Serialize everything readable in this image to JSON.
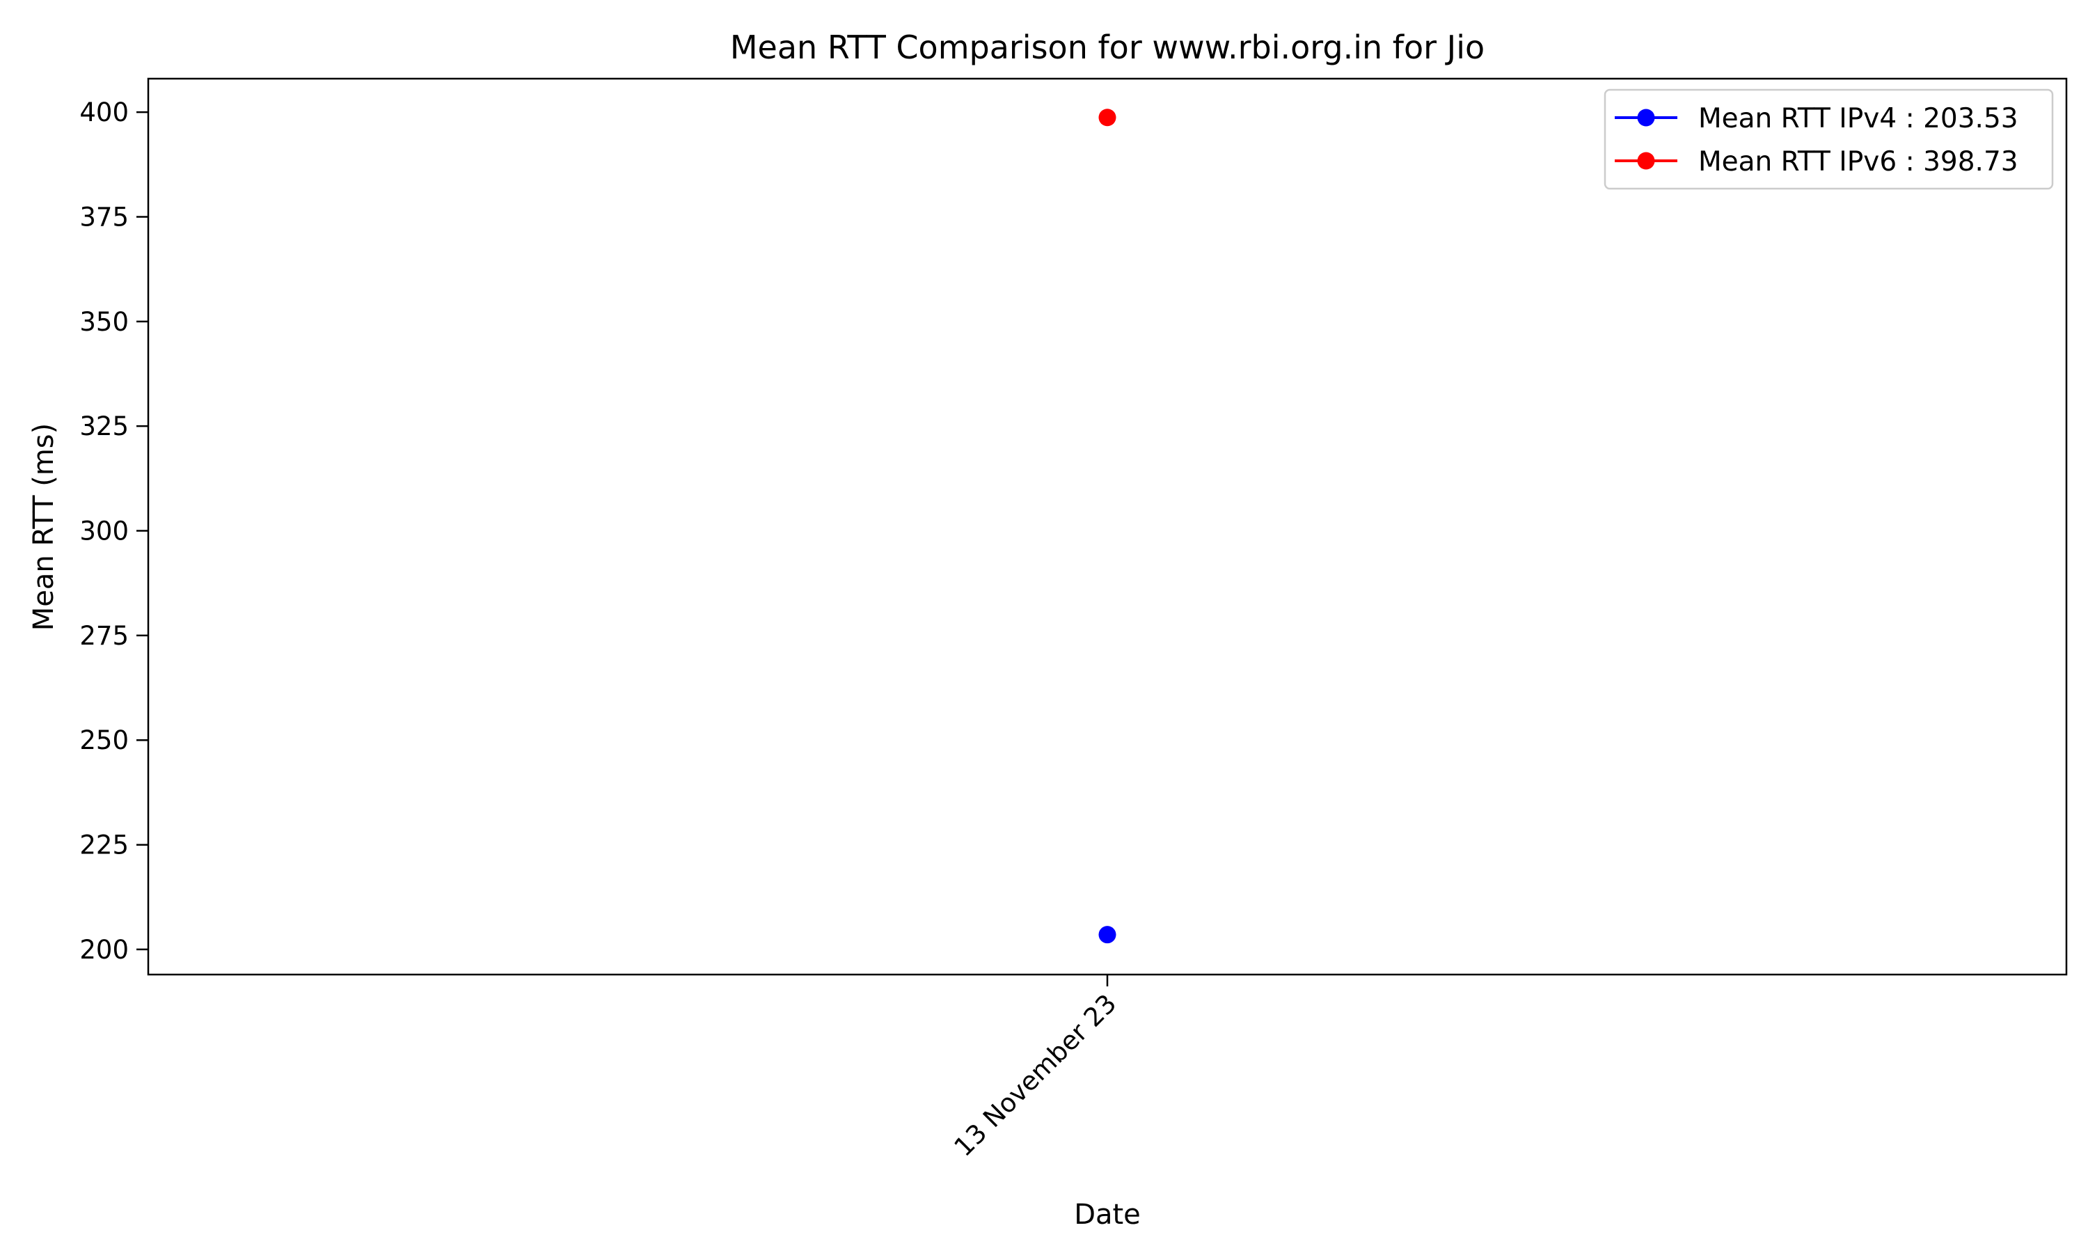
{
  "chart_data": {
    "type": "line",
    "title": "Mean RTT Comparison for www.rbi.org.in for Jio",
    "xlabel": "Date",
    "ylabel": "Mean RTT (ms)",
    "categories": [
      "13 November 23"
    ],
    "ylim": [
      194,
      408
    ],
    "yticks": [
      200,
      225,
      250,
      275,
      300,
      325,
      350,
      375,
      400
    ],
    "grid": false,
    "legend_position": "top-right",
    "series": [
      {
        "name": "Mean RTT IPv4 : 203.53",
        "color": "#0000ff",
        "values": [
          203.53
        ]
      },
      {
        "name": "Mean RTT IPv6 : 398.73",
        "color": "#ff0000",
        "values": [
          398.73
        ]
      }
    ]
  }
}
